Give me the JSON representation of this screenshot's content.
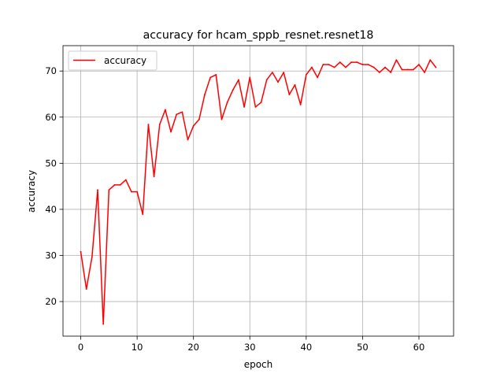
{
  "chart_data": {
    "type": "line",
    "title": "accuracy for hcam_sppb_resnet.resnet18",
    "xlabel": "epoch",
    "ylabel": "accuracy",
    "xlim": [
      -3.15,
      66.15
    ],
    "ylim": [
      12.5,
      75.5
    ],
    "xticks": [
      0,
      10,
      20,
      30,
      40,
      50,
      60
    ],
    "yticks": [
      20,
      30,
      40,
      50,
      60,
      70
    ],
    "grid": true,
    "legend_position": "upper-left",
    "series": [
      {
        "name": "accuracy",
        "color": "#ff0000",
        "x": [
          0,
          1,
          2,
          3,
          4,
          5,
          6,
          7,
          8,
          9,
          10,
          11,
          12,
          13,
          14,
          15,
          16,
          17,
          18,
          19,
          20,
          21,
          22,
          23,
          24,
          25,
          26,
          27,
          28,
          29,
          30,
          31,
          32,
          33,
          34,
          35,
          36,
          37,
          38,
          39,
          40,
          41,
          42,
          43,
          44,
          45,
          46,
          47,
          48,
          49,
          50,
          51,
          52,
          53,
          54,
          55,
          56,
          57,
          58,
          59,
          60,
          61,
          62,
          63
        ],
        "y": [
          30.8,
          22.7,
          29.7,
          44.2,
          15.1,
          44.2,
          45.3,
          45.3,
          46.4,
          43.8,
          43.8,
          38.9,
          58.4,
          47.1,
          58.4,
          61.6,
          56.8,
          60.6,
          61.1,
          55.1,
          58.1,
          59.5,
          64.9,
          68.6,
          69.2,
          59.5,
          63.2,
          65.9,
          68.1,
          62.2,
          68.6,
          62.2,
          63.2,
          68.1,
          69.7,
          67.6,
          69.7,
          64.9,
          67.0,
          62.7,
          69.2,
          70.8,
          68.6,
          71.4,
          71.4,
          70.8,
          71.9,
          70.8,
          71.9,
          71.9,
          71.4,
          71.4,
          70.8,
          69.7,
          70.8,
          69.7,
          72.4,
          70.3,
          70.3,
          70.3,
          71.4,
          69.7,
          72.4,
          70.8
        ]
      }
    ]
  }
}
